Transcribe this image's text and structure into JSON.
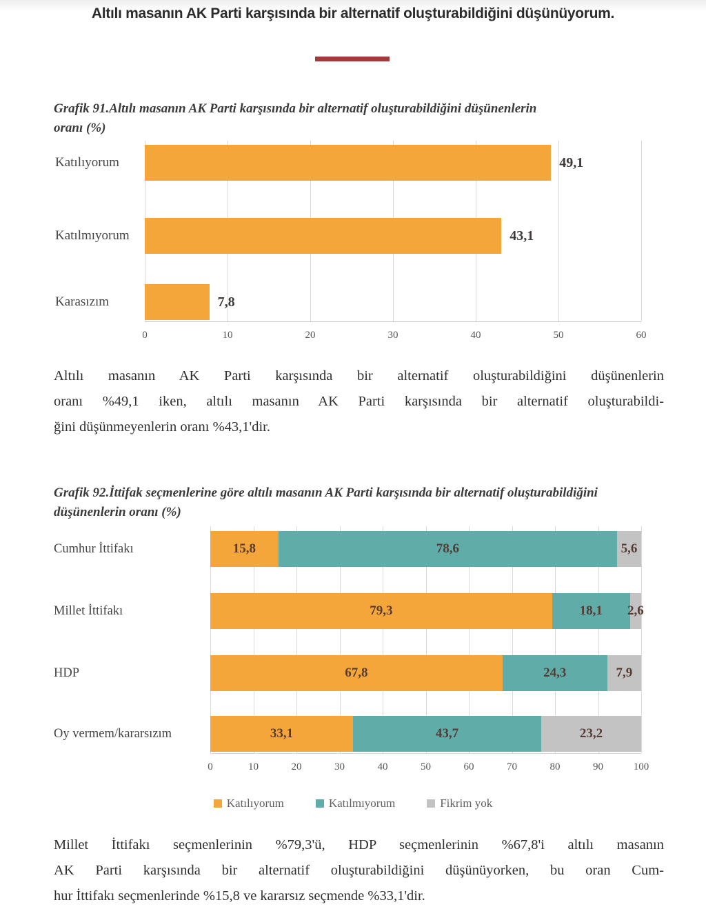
{
  "page_title": "Altılı masanın AK Parti karşısında bir alternatif oluşturabildiğini düşünüyorum.",
  "colors": {
    "divider_red": "#9e3b3b",
    "agree_orange": "#f4a63b",
    "disagree_teal": "#5faca8",
    "noidea_gray": "#c3c3c3"
  },
  "chart1": {
    "caption": "Grafik 91.Altılı masanın AK Parti karşısında bir alternatif oluşturabildiğini düşünenlerin oranı (%)"
  },
  "chart2": {
    "caption": "Grafik 92.İttifak seçmenlerine göre altılı masanın AK Parti karşısında bir alternatif oluşturabildiğini düşünenlerin oranı (%)"
  },
  "paragraphs": {
    "p1_lines": [
      "Altılı masanın AK Parti karşısında bir alternatif oluşturabildiğini düşünenlerin",
      "oranı %49,1 iken, altılı masanın AK Parti karşısında bir alternatif oluşturabildi-",
      "ğini düşünmeyenlerin oranı %43,1'dir."
    ],
    "p2_lines": [
      "Millet İttifakı seçmenlerinin %79,3'ü, HDP seçmenlerinin %67,8'i altılı masanın",
      "AK Parti karşısında bir alternatif oluşturabildiğini düşünüyorken, bu oran Cum-",
      "hur İttifakı seçmenlerinde %15,8 ve kararsız seçmende %33,1'dir."
    ]
  },
  "chart_data": [
    {
      "type": "bar",
      "orientation": "horizontal",
      "title": "Grafik 91. Altılı masanın AK Parti karşısında bir alternatif oluşturabildiğini düşünenlerin oranı (%)",
      "categories": [
        "Katılıyorum",
        "Katılmıyorum",
        "Karasızım"
      ],
      "values": [
        49.1,
        43.1,
        7.8
      ],
      "value_labels": [
        "49,1",
        "43,1",
        "7,8"
      ],
      "bar_color": "#f4a63b",
      "xlim": [
        0,
        60
      ],
      "xticks": [
        0,
        10,
        20,
        30,
        40,
        50,
        60
      ],
      "grid": true,
      "legend_position": "none"
    },
    {
      "type": "bar",
      "stacked": true,
      "orientation": "horizontal",
      "title": "Grafik 92. İttifak seçmenlerine göre altılı masanın AK Parti karşısında bir alternatif oluşturabildiğini düşünenlerin oranı (%)",
      "categories": [
        "Cumhur İttifakı",
        "Millet İttifakı",
        "HDP",
        "Oy vermem/kararsızım"
      ],
      "series": [
        {
          "name": "Katılıyorum",
          "color": "#f4a63b",
          "values": [
            15.8,
            79.3,
            67.8,
            33.1
          ],
          "labels": [
            "15,8",
            "79,3",
            "67,8",
            "33,1"
          ]
        },
        {
          "name": "Katılmıyorum",
          "color": "#5faca8",
          "values": [
            78.6,
            18.1,
            24.3,
            43.7
          ],
          "labels": [
            "78,6",
            "18,1",
            "24,3",
            "43,7"
          ]
        },
        {
          "name": "Fikrim yok",
          "color": "#c3c3c3",
          "values": [
            5.6,
            2.6,
            7.9,
            23.2
          ],
          "labels": [
            "5,6",
            "2,6",
            "7,9",
            "23,2"
          ]
        }
      ],
      "xlim": [
        0,
        100
      ],
      "xticks": [
        0,
        10,
        20,
        30,
        40,
        50,
        60,
        70,
        80,
        90,
        100
      ],
      "grid": true,
      "legend_position": "bottom"
    }
  ]
}
